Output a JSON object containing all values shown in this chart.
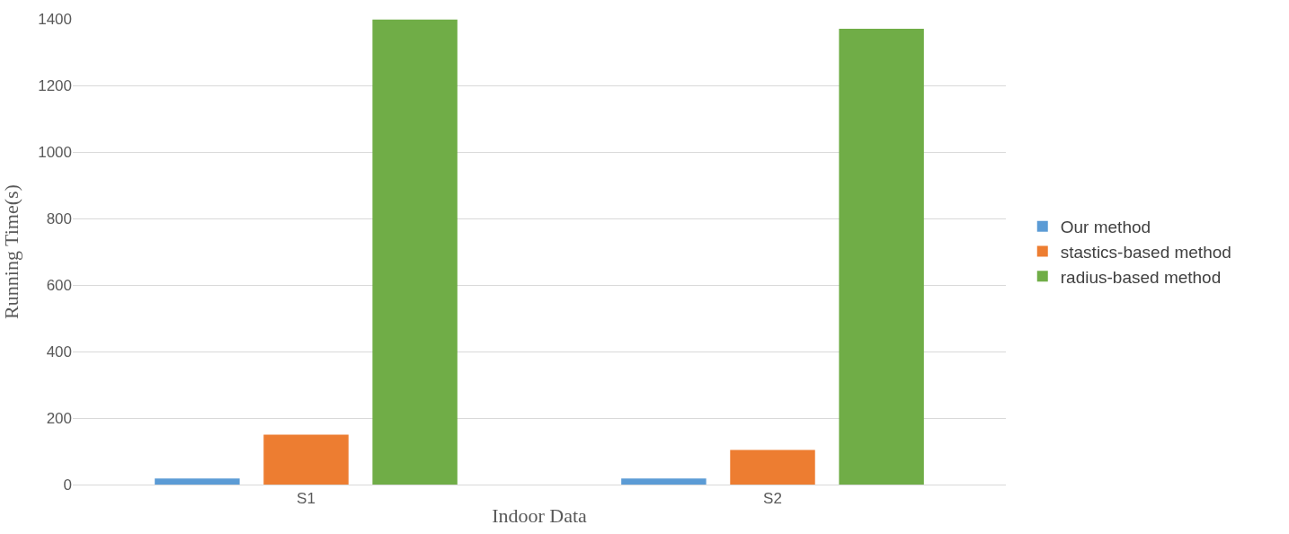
{
  "chart_data": {
    "type": "bar",
    "xlabel": "Indoor Data",
    "ylabel": "Running Time(s)",
    "categories": [
      "S1",
      "S2"
    ],
    "series": [
      {
        "name": "Our method",
        "color": "#5b9bd5",
        "values": [
          18,
          18
        ]
      },
      {
        "name": "stastics-based method",
        "color": "#ed7d31",
        "values": [
          150,
          104
        ]
      },
      {
        "name": "radius-based method",
        "color": "#70ad47",
        "values": [
          1398,
          1370
        ]
      }
    ],
    "ylim": [
      0,
      1400
    ],
    "yticks": [
      0,
      200,
      400,
      600,
      800,
      1000,
      1200,
      1400
    ],
    "grid": "y",
    "legend": "right"
  }
}
